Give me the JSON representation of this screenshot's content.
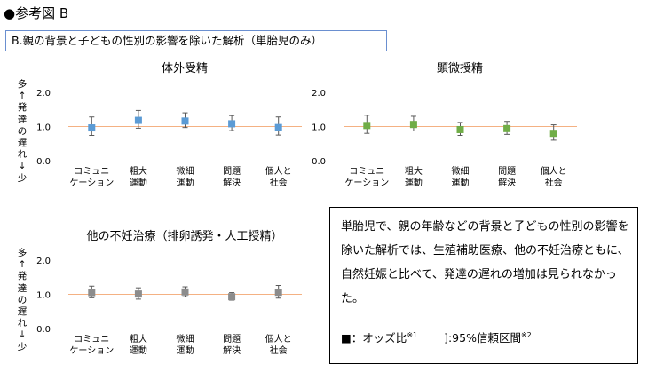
{
  "header": "●参考図 B",
  "subtitle": "B.親の背景と子どもの性別の影響を除いた解析（単胎児のみ）",
  "y_axis_label": [
    "多",
    "↑",
    "発",
    "達",
    "の",
    "遅",
    "れ",
    "↓",
    "少"
  ],
  "note": {
    "body": "単胎児で、親の年齢などの背景と子どもの性別の影響を除いた解析では、生殖補助医療、他の不妊治療ともに、自然妊娠と比べて、発達の遅れの増加は見られなかった。",
    "legend_square": "■：オッズ比",
    "legend_sup1": "※1",
    "legend_ci": "]:95%信頼区間",
    "legend_sup2": "※2"
  },
  "chart_data": [
    {
      "type": "scatter",
      "title": "体外受精",
      "categories": [
        [
          "コミュニ",
          "ケーション"
        ],
        [
          "粗大",
          "運動"
        ],
        [
          "微細",
          "運動"
        ],
        [
          "問題",
          "解決"
        ],
        [
          "個人と",
          "社会"
        ]
      ],
      "values": [
        0.96,
        1.18,
        1.16,
        1.08,
        0.97
      ],
      "ci_low": [
        0.74,
        0.95,
        0.97,
        0.88,
        0.75
      ],
      "ci_high": [
        1.28,
        1.47,
        1.4,
        1.32,
        1.28
      ],
      "ylim": [
        0,
        2
      ],
      "yticks": [
        "0.0",
        "1.0",
        "2.0"
      ],
      "reference_line": 1.0,
      "color": "#5b9bd5"
    },
    {
      "type": "scatter",
      "title": "顕微授精",
      "categories": [
        [
          "コミュニ",
          "ケーション"
        ],
        [
          "粗大",
          "運動"
        ],
        [
          "微細",
          "運動"
        ],
        [
          "問題",
          "解決"
        ],
        [
          "個人と",
          "社会"
        ]
      ],
      "values": [
        1.03,
        1.06,
        0.91,
        0.94,
        0.8
      ],
      "ci_low": [
        0.8,
        0.87,
        0.74,
        0.77,
        0.6
      ],
      "ci_high": [
        1.33,
        1.3,
        1.12,
        1.15,
        1.05
      ],
      "ylim": [
        0,
        2
      ],
      "yticks": [
        "0.0",
        "1.0",
        "2.0"
      ],
      "reference_line": 1.0,
      "color": "#70ad47"
    },
    {
      "type": "scatter",
      "title": "他の不妊治療（排卵誘発・人工授精）",
      "categories": [
        [
          "コミュニ",
          "ケーション"
        ],
        [
          "粗大",
          "運動"
        ],
        [
          "微細",
          "運動"
        ],
        [
          "問題",
          "解決"
        ],
        [
          "個人と",
          "社会"
        ]
      ],
      "values": [
        1.05,
        1.01,
        1.07,
        0.93,
        1.06
      ],
      "ci_low": [
        0.9,
        0.86,
        0.93,
        0.83,
        0.89
      ],
      "ci_high": [
        1.24,
        1.19,
        1.22,
        1.05,
        1.26
      ],
      "ylim": [
        0,
        2
      ],
      "yticks": [
        "0.0",
        "1.0",
        "2.0"
      ],
      "reference_line": 1.0,
      "color": "#8c8c8c"
    }
  ]
}
